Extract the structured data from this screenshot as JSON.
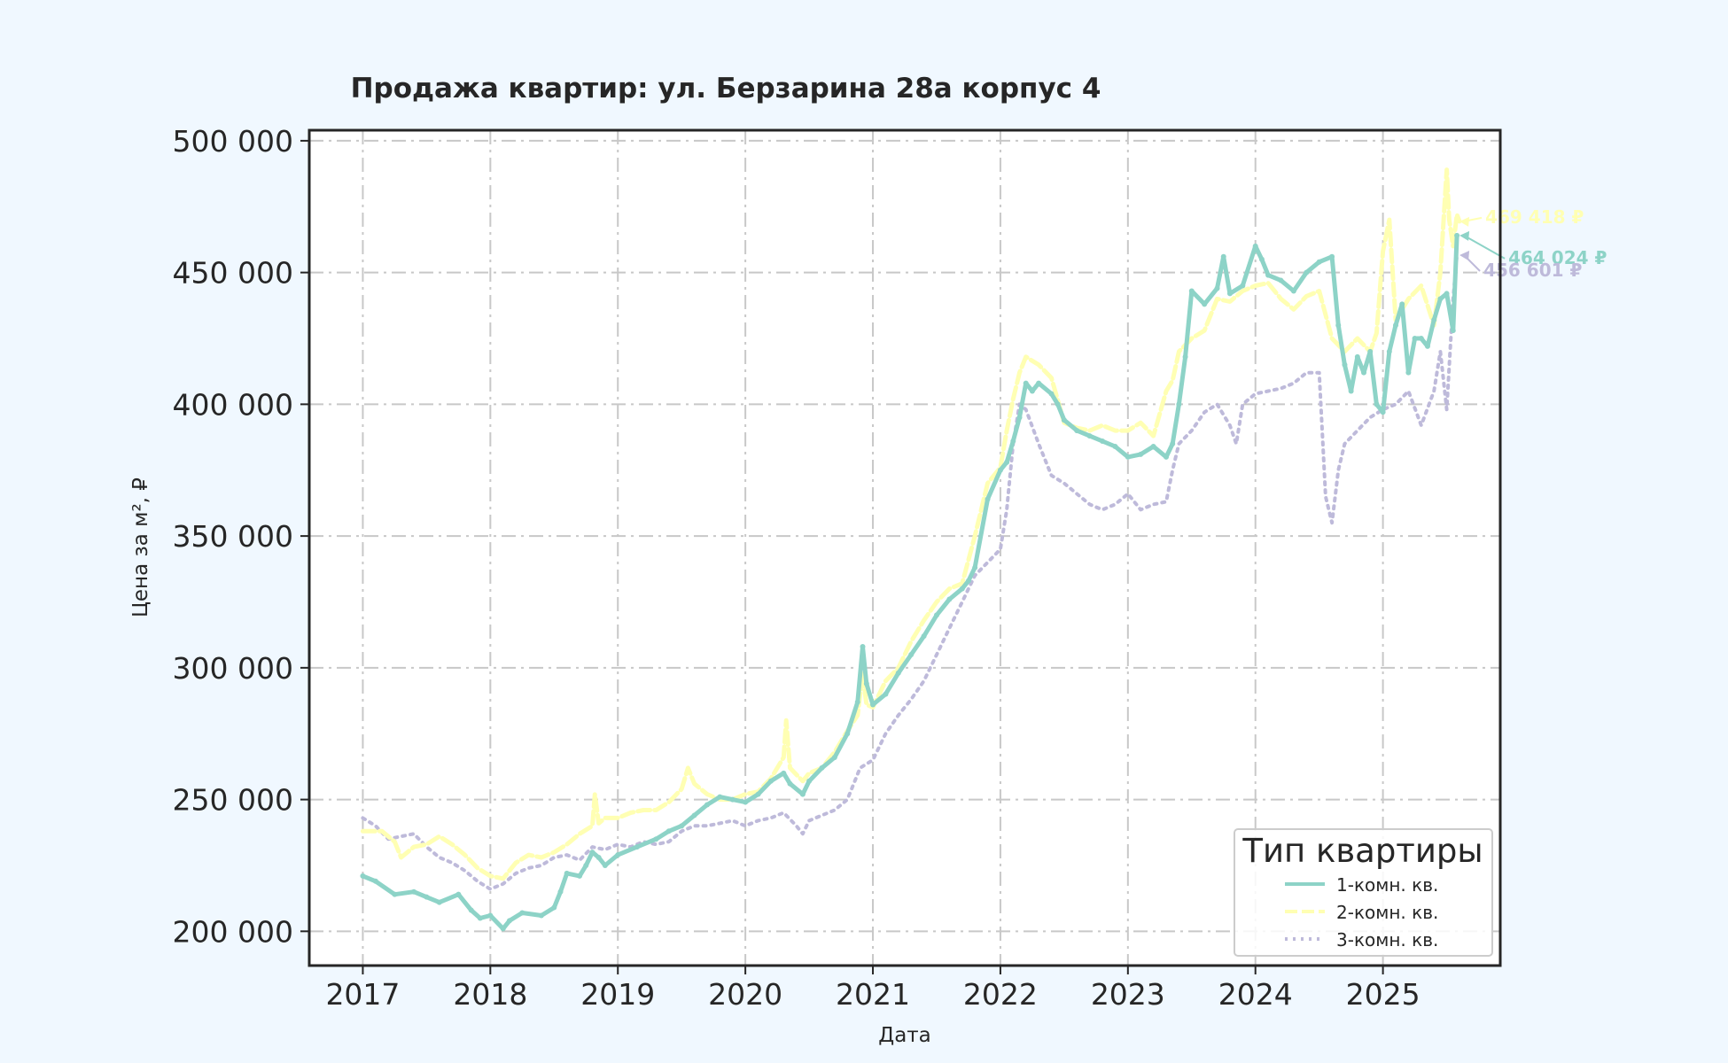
{
  "colors": {
    "background": "#f0f8ff",
    "plot_background": "#ffffff",
    "series": [
      "#8dd3c7",
      "#ffffb3",
      "#bebada"
    ]
  },
  "chart_data": {
    "type": "line",
    "title": "Продажа квартир: ул. Берзарина 28а корпус 4",
    "xlabel": "Дата",
    "ylabel": "Цена за м², ₽",
    "xlim": [
      2016.58,
      2025.92
    ],
    "ylim": [
      187000,
      504000
    ],
    "x_ticks": [
      2017,
      2018,
      2019,
      2020,
      2021,
      2022,
      2023,
      2024,
      2025
    ],
    "x_tick_labels": [
      "2017",
      "2018",
      "2019",
      "2020",
      "2021",
      "2022",
      "2023",
      "2024",
      "2025"
    ],
    "y_ticks": [
      200000,
      250000,
      300000,
      350000,
      400000,
      450000,
      500000
    ],
    "y_tick_labels": [
      "200 000",
      "250 000",
      "300 000",
      "350 000",
      "400 000",
      "450 000",
      "500 000"
    ],
    "grid": true,
    "legend": {
      "title": "Тип квартиры",
      "position": "bottom-right"
    },
    "series": [
      {
        "name": "1-комн. кв.",
        "style": "solid",
        "x": [
          2017.0,
          2017.1,
          2017.25,
          2017.4,
          2017.5,
          2017.6,
          2017.75,
          2017.85,
          2017.92,
          2018.0,
          2018.1,
          2018.15,
          2018.25,
          2018.4,
          2018.5,
          2018.55,
          2018.6,
          2018.7,
          2018.75,
          2018.8,
          2018.85,
          2018.9,
          2019.0,
          2019.15,
          2019.3,
          2019.4,
          2019.5,
          2019.6,
          2019.7,
          2019.8,
          2019.9,
          2020.0,
          2020.1,
          2020.2,
          2020.3,
          2020.35,
          2020.45,
          2020.5,
          2020.6,
          2020.7,
          2020.8,
          2020.88,
          2020.92,
          2020.95,
          2021.0,
          2021.1,
          2021.2,
          2021.3,
          2021.4,
          2021.5,
          2021.6,
          2021.7,
          2021.75,
          2021.8,
          2021.9,
          2022.0,
          2022.05,
          2022.1,
          2022.15,
          2022.2,
          2022.25,
          2022.3,
          2022.4,
          2022.45,
          2022.5,
          2022.6,
          2022.7,
          2022.8,
          2022.9,
          2023.0,
          2023.1,
          2023.2,
          2023.3,
          2023.35,
          2023.4,
          2023.45,
          2023.5,
          2023.6,
          2023.7,
          2023.75,
          2023.8,
          2023.9,
          2024.0,
          2024.05,
          2024.1,
          2024.2,
          2024.3,
          2024.4,
          2024.5,
          2024.6,
          2024.65,
          2024.7,
          2024.75,
          2024.8,
          2024.85,
          2024.9,
          2024.95,
          2025.0,
          2025.05,
          2025.1,
          2025.15,
          2025.2,
          2025.25,
          2025.3,
          2025.35,
          2025.4,
          2025.45,
          2025.5,
          2025.55,
          2025.58
        ],
        "values": [
          221000,
          219000,
          214000,
          215000,
          213000,
          211000,
          214000,
          208000,
          205000,
          206000,
          201000,
          204000,
          207000,
          206000,
          209000,
          215000,
          222000,
          221000,
          225000,
          230000,
          228000,
          225000,
          229000,
          232000,
          235000,
          238000,
          240000,
          244000,
          248000,
          251000,
          250000,
          249000,
          252000,
          257000,
          260000,
          256000,
          252000,
          257000,
          262000,
          266000,
          275000,
          287000,
          308000,
          294000,
          286000,
          290000,
          298000,
          305000,
          312000,
          320000,
          326000,
          330000,
          333000,
          338000,
          364000,
          375000,
          378000,
          386000,
          395000,
          408000,
          405000,
          408000,
          404000,
          400000,
          394000,
          390000,
          388000,
          386000,
          384000,
          380000,
          381000,
          384000,
          380000,
          385000,
          400000,
          418000,
          443000,
          438000,
          444000,
          456000,
          442000,
          445000,
          460000,
          455000,
          449000,
          447000,
          443000,
          450000,
          454000,
          456000,
          430000,
          415000,
          405000,
          418000,
          412000,
          420000,
          400000,
          397000,
          420000,
          430000,
          438000,
          412000,
          425000,
          425000,
          422000,
          432000,
          440000,
          442000,
          428000,
          464024
        ]
      },
      {
        "name": "2-комн. кв.",
        "style": "dashed",
        "x": [
          2017.0,
          2017.15,
          2017.25,
          2017.3,
          2017.4,
          2017.5,
          2017.6,
          2017.7,
          2017.8,
          2017.9,
          2018.0,
          2018.1,
          2018.2,
          2018.3,
          2018.4,
          2018.5,
          2018.6,
          2018.7,
          2018.8,
          2018.82,
          2018.85,
          2018.9,
          2019.0,
          2019.1,
          2019.2,
          2019.3,
          2019.4,
          2019.5,
          2019.55,
          2019.6,
          2019.7,
          2019.8,
          2019.9,
          2020.0,
          2020.1,
          2020.2,
          2020.3,
          2020.32,
          2020.35,
          2020.45,
          2020.5,
          2020.6,
          2020.7,
          2020.8,
          2020.88,
          2020.92,
          2020.95,
          2021.0,
          2021.1,
          2021.2,
          2021.3,
          2021.4,
          2021.5,
          2021.6,
          2021.7,
          2021.8,
          2021.9,
          2022.0,
          2022.05,
          2022.1,
          2022.15,
          2022.2,
          2022.3,
          2022.4,
          2022.5,
          2022.6,
          2022.7,
          2022.8,
          2022.9,
          2023.0,
          2023.1,
          2023.2,
          2023.3,
          2023.35,
          2023.4,
          2023.5,
          2023.6,
          2023.7,
          2023.8,
          2023.9,
          2024.0,
          2024.1,
          2024.2,
          2024.3,
          2024.4,
          2024.5,
          2024.6,
          2024.7,
          2024.8,
          2024.9,
          2024.95,
          2025.0,
          2025.05,
          2025.1,
          2025.2,
          2025.3,
          2025.4,
          2025.45,
          2025.5,
          2025.52,
          2025.55,
          2025.58,
          2025.6
        ],
        "values": [
          238000,
          238000,
          234000,
          228000,
          232000,
          233000,
          236000,
          233000,
          229000,
          224000,
          221000,
          220000,
          226000,
          229000,
          228000,
          230000,
          233000,
          237000,
          240000,
          252000,
          241000,
          243000,
          243000,
          245000,
          246000,
          246000,
          249000,
          254000,
          262000,
          256000,
          252000,
          250000,
          250000,
          252000,
          253000,
          258000,
          266000,
          280000,
          262000,
          257000,
          260000,
          262000,
          268000,
          276000,
          282000,
          298000,
          286000,
          285000,
          295000,
          300000,
          310000,
          318000,
          325000,
          330000,
          332000,
          350000,
          370000,
          376000,
          390000,
          402000,
          412000,
          418000,
          415000,
          410000,
          393000,
          391000,
          390000,
          392000,
          390000,
          390000,
          393000,
          388000,
          405000,
          409000,
          420000,
          425000,
          428000,
          440000,
          439000,
          443000,
          445000,
          446000,
          440000,
          436000,
          441000,
          443000,
          425000,
          420000,
          425000,
          420000,
          427000,
          458000,
          470000,
          432000,
          440000,
          445000,
          430000,
          450000,
          489000,
          470000,
          460000,
          472000,
          469418
        ]
      },
      {
        "name": "3-комн. кв.",
        "style": "dotted",
        "x": [
          2017.0,
          2017.1,
          2017.2,
          2017.3,
          2017.4,
          2017.5,
          2017.6,
          2017.7,
          2017.8,
          2017.9,
          2018.0,
          2018.1,
          2018.2,
          2018.3,
          2018.4,
          2018.5,
          2018.6,
          2018.7,
          2018.8,
          2018.9,
          2019.0,
          2019.1,
          2019.2,
          2019.3,
          2019.4,
          2019.5,
          2019.6,
          2019.7,
          2019.8,
          2019.9,
          2020.0,
          2020.1,
          2020.2,
          2020.3,
          2020.4,
          2020.45,
          2020.5,
          2020.6,
          2020.7,
          2020.8,
          2020.9,
          2021.0,
          2021.1,
          2021.2,
          2021.3,
          2021.4,
          2021.5,
          2021.6,
          2021.7,
          2021.8,
          2021.9,
          2022.0,
          2022.05,
          2022.1,
          2022.15,
          2022.2,
          2022.3,
          2022.4,
          2022.5,
          2022.6,
          2022.7,
          2022.8,
          2022.9,
          2023.0,
          2023.1,
          2023.2,
          2023.3,
          2023.35,
          2023.4,
          2023.5,
          2023.6,
          2023.7,
          2023.8,
          2023.85,
          2023.9,
          2024.0,
          2024.1,
          2024.2,
          2024.3,
          2024.4,
          2024.5,
          2024.55,
          2024.6,
          2024.65,
          2024.7,
          2024.8,
          2024.9,
          2025.0,
          2025.1,
          2025.2,
          2025.3,
          2025.4,
          2025.45,
          2025.5,
          2025.55,
          2025.58
        ],
        "values": [
          243000,
          240000,
          235000,
          236000,
          237000,
          232000,
          228000,
          226000,
          223000,
          219000,
          216000,
          218000,
          222000,
          224000,
          225000,
          228000,
          229000,
          227000,
          232000,
          231000,
          233000,
          232000,
          234000,
          233000,
          234000,
          238000,
          240000,
          240000,
          241000,
          242000,
          240000,
          242000,
          243000,
          245000,
          240000,
          237000,
          242000,
          244000,
          246000,
          250000,
          262000,
          265000,
          275000,
          282000,
          288000,
          295000,
          305000,
          315000,
          325000,
          335000,
          340000,
          345000,
          360000,
          385000,
          400000,
          398000,
          385000,
          373000,
          370000,
          366000,
          362000,
          360000,
          362000,
          366000,
          360000,
          362000,
          363000,
          375000,
          385000,
          390000,
          397000,
          400000,
          392000,
          385000,
          400000,
          404000,
          405000,
          406000,
          408000,
          412000,
          412000,
          365000,
          355000,
          375000,
          385000,
          390000,
          395000,
          398000,
          400000,
          405000,
          392000,
          405000,
          420000,
          398000,
          440000,
          456601
        ]
      }
    ],
    "annotations": [
      {
        "series": 1,
        "text": "469 418 ₽",
        "x": 2025.58,
        "y": 469418
      },
      {
        "series": 0,
        "text": "464 024 ₽",
        "x": 2025.58,
        "y": 464024
      },
      {
        "series": 2,
        "text": "456 601 ₽",
        "x": 2025.58,
        "y": 456601
      }
    ]
  }
}
